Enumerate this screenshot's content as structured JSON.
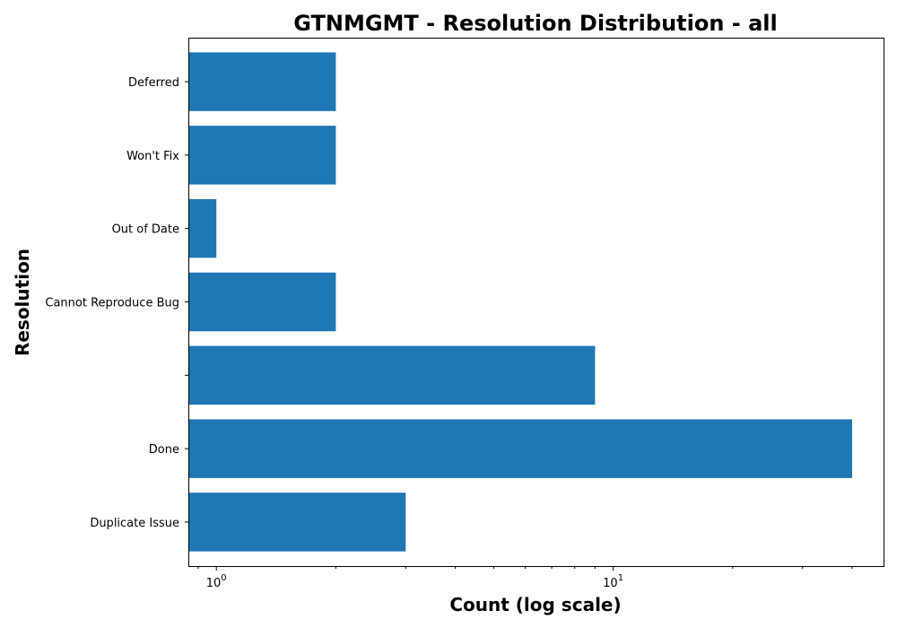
{
  "chart_data": {
    "type": "bar",
    "orientation": "horizontal",
    "title": "GTNMGMT - Resolution Distribution - all",
    "xlabel": "Count (log scale)",
    "ylabel": "Resolution",
    "xscale": "log",
    "xlim": [
      0.85,
      48
    ],
    "x_ticks": [
      {
        "value": 1,
        "base": "10",
        "exp": "0"
      },
      {
        "value": 10,
        "base": "10",
        "exp": "1"
      }
    ],
    "grid": false,
    "bar_color": "#1f77b4",
    "categories": [
      "Duplicate Issue",
      "Done",
      "",
      "Cannot Reproduce Bug",
      "Out of Date",
      "Won't Fix",
      "Deferred"
    ],
    "values": [
      3,
      40,
      9,
      2,
      1,
      2,
      2
    ]
  }
}
